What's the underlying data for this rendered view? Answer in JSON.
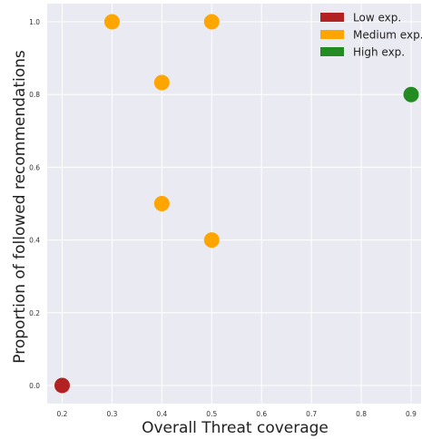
{
  "chart_data": {
    "type": "scatter",
    "xlabel": "Overall Threat coverage",
    "ylabel": "Proportion of followed recommendations",
    "xlim": [
      0.17,
      0.92
    ],
    "ylim": [
      -0.05,
      1.05
    ],
    "x_ticks": [
      "0.2",
      "0.3",
      "0.4",
      "0.5",
      "0.6",
      "0.7",
      "0.8",
      "0.9"
    ],
    "y_ticks": [
      "0.0",
      "0.2",
      "0.4",
      "0.6",
      "0.8",
      "1.0"
    ],
    "grid": true,
    "background": "#eaeaf2",
    "legend_position": "top-right",
    "legend": [
      {
        "name": "Low exp.",
        "color": "#b22222"
      },
      {
        "name": "Medium exp.",
        "color": "#ffa500"
      },
      {
        "name": "High exp.",
        "color": "#228b22"
      }
    ],
    "points": [
      {
        "x": 0.2,
        "y": 0.0,
        "group": "Low exp."
      },
      {
        "x": 0.3,
        "y": 1.0,
        "group": "Medium exp."
      },
      {
        "x": 0.5,
        "y": 1.0,
        "group": "Medium exp."
      },
      {
        "x": 0.4,
        "y": 0.833,
        "group": "Medium exp."
      },
      {
        "x": 0.4,
        "y": 0.5,
        "group": "Medium exp."
      },
      {
        "x": 0.5,
        "y": 0.4,
        "group": "Medium exp."
      },
      {
        "x": 0.9,
        "y": 0.8,
        "group": "High exp."
      }
    ]
  }
}
